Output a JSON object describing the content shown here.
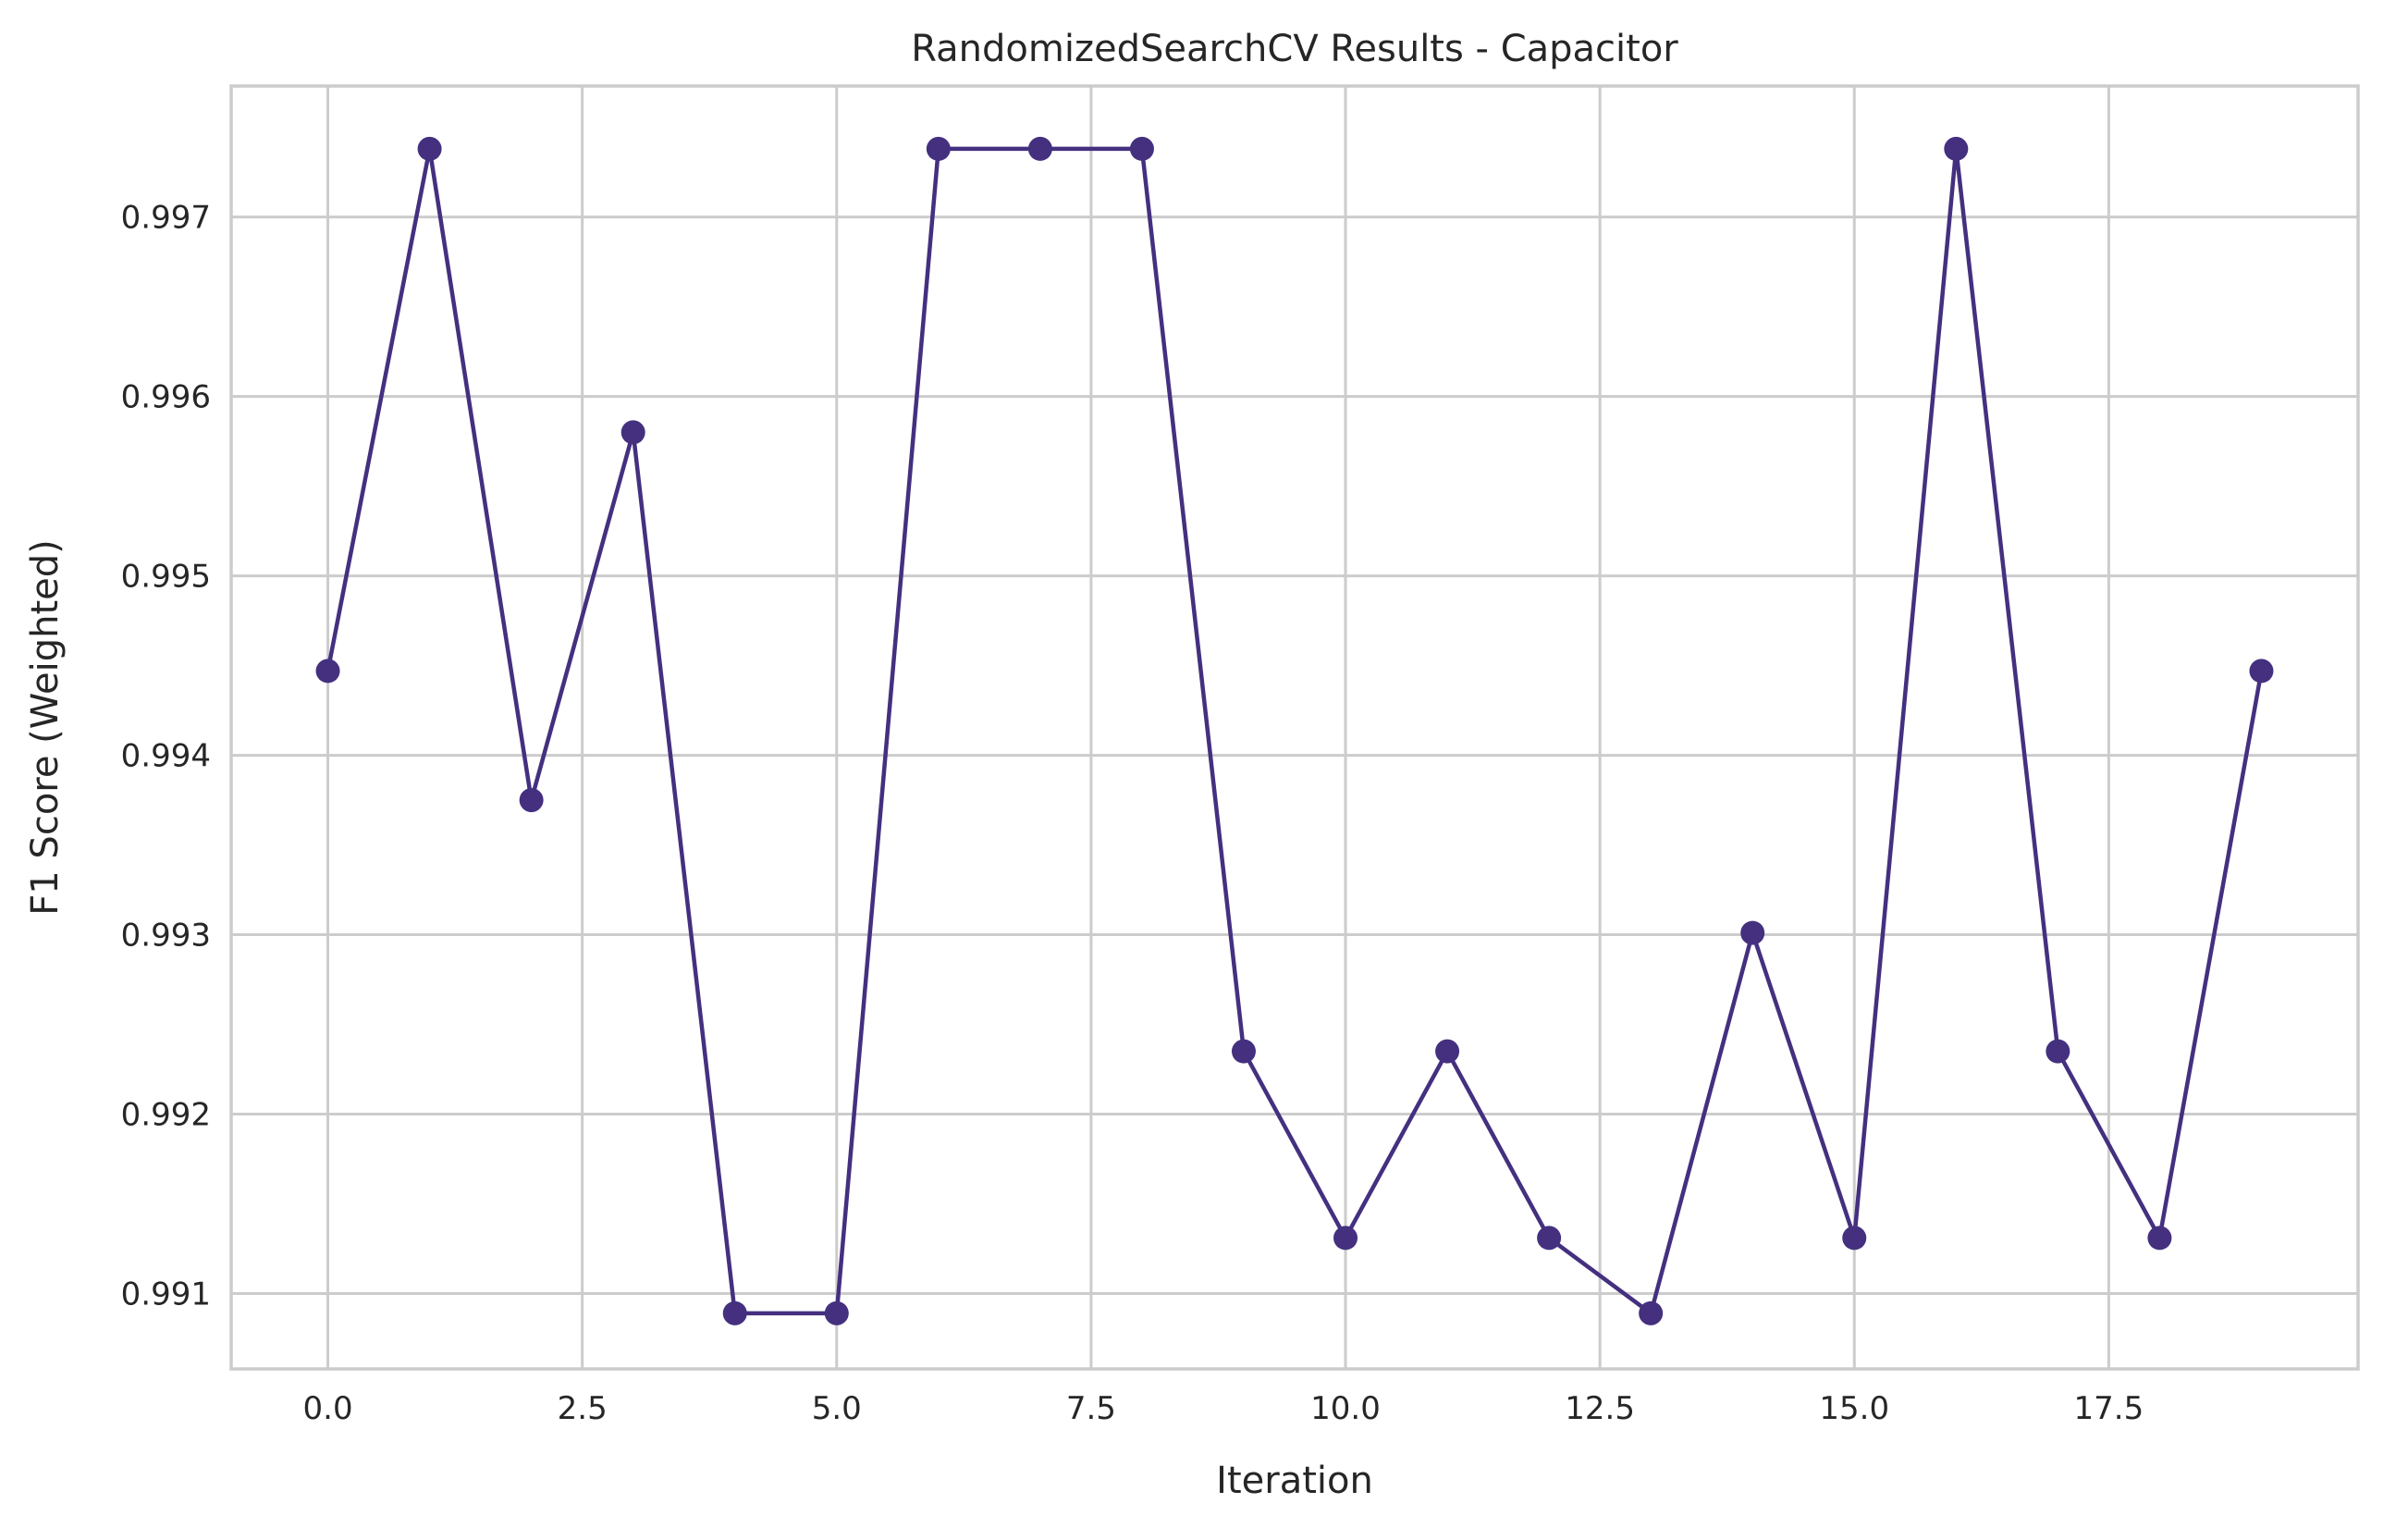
{
  "chart_data": {
    "type": "line",
    "title": "RandomizedSearchCV Results - Capacitor",
    "xlabel": "Iteration",
    "ylabel": "F1 Score (Weighted)",
    "xlim": [
      -0.95,
      19.95
    ],
    "ylim": [
      0.99058,
      0.99773
    ],
    "xticks": [
      0.0,
      2.5,
      5.0,
      7.5,
      10.0,
      12.5,
      15.0,
      17.5
    ],
    "xtick_labels": [
      "0.0",
      "2.5",
      "5.0",
      "7.5",
      "10.0",
      "12.5",
      "15.0",
      "17.5"
    ],
    "yticks": [
      0.991,
      0.992,
      0.993,
      0.994,
      0.995,
      0.996,
      0.997
    ],
    "ytick_labels": [
      "0.991",
      "0.992",
      "0.993",
      "0.994",
      "0.995",
      "0.996",
      "0.997"
    ],
    "grid": true,
    "series": [
      {
        "color": "#44307f",
        "marker": "circle",
        "x": [
          0,
          1,
          2,
          3,
          4,
          5,
          6,
          7,
          8,
          9,
          10,
          11,
          12,
          13,
          14,
          15,
          16,
          17,
          18,
          19
        ],
        "y": [
          0.99447,
          0.99738,
          0.99375,
          0.9958,
          0.99089,
          0.99089,
          0.99738,
          0.99738,
          0.99738,
          0.99235,
          0.99131,
          0.99235,
          0.99131,
          0.99089,
          0.99301,
          0.99131,
          0.99738,
          0.99235,
          0.99131,
          0.99447
        ]
      }
    ]
  }
}
